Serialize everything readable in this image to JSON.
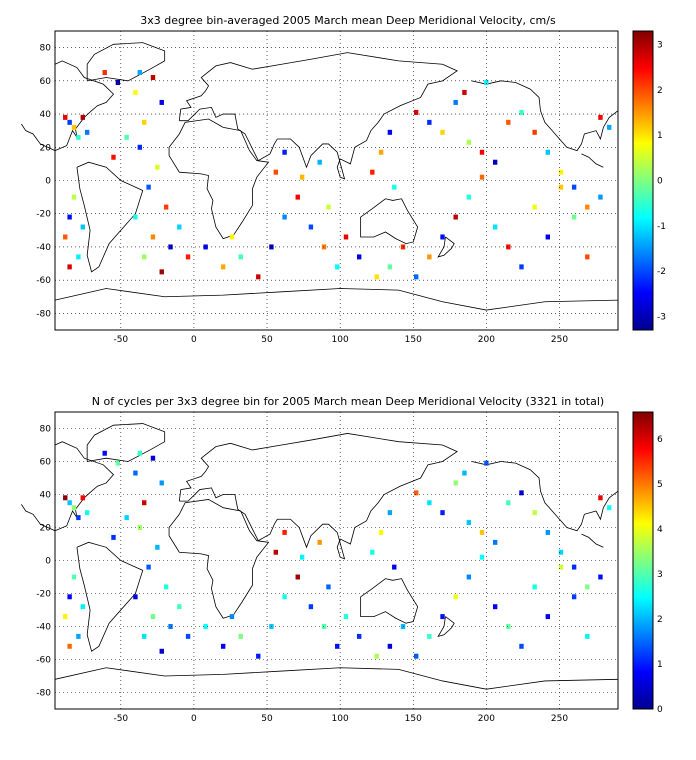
{
  "chart_data": [
    {
      "type": "heatmap",
      "title": "3x3 degree bin-averaged 2005 March mean Deep Meridional Velocity, cm/s",
      "xlim": [
        -95,
        290
      ],
      "ylim": [
        -90,
        90
      ],
      "xticks": [
        -50,
        0,
        50,
        100,
        150,
        200,
        250
      ],
      "xticklabels": [
        "-50",
        "0",
        "50",
        "100",
        "150",
        "200",
        "250"
      ],
      "yticks": [
        80,
        60,
        40,
        20,
        0,
        -20,
        -40,
        -60,
        -80
      ],
      "yticklabels": [
        "80",
        "60",
        "40",
        "20",
        "0",
        "-20",
        "-40",
        "-60",
        "-80"
      ],
      "grid": true,
      "colorbar": {
        "clim": [
          -3.3,
          3.3
        ],
        "ticks": [
          3,
          2,
          1,
          0,
          -1,
          -2,
          -3
        ],
        "ticklabels": [
          "3",
          "2",
          "1",
          "0",
          "-1",
          "-2",
          "-3"
        ]
      },
      "bins": [
        [
          -88,
          38,
          2.6
        ],
        [
          -85,
          35,
          -2.1
        ],
        [
          -82,
          32,
          1.2
        ],
        [
          -79,
          26,
          -0.5
        ],
        [
          -76,
          38,
          3.0
        ],
        [
          -73,
          29,
          -1.7
        ],
        [
          -82,
          -10,
          0.4
        ],
        [
          -85,
          -22,
          -2.4
        ],
        [
          -88,
          -34,
          1.9
        ],
        [
          -79,
          -46,
          -0.9
        ],
        [
          -85,
          -52,
          2.7
        ],
        [
          -76,
          -28,
          -1.2
        ],
        [
          -61,
          65,
          2.2
        ],
        [
          -52,
          59,
          -3.0
        ],
        [
          -40,
          53,
          0.8
        ],
        [
          -37,
          65,
          -1.4
        ],
        [
          -28,
          62,
          2.9
        ],
        [
          -22,
          47,
          -2.6
        ],
        [
          -34,
          35,
          1.1
        ],
        [
          -46,
          26,
          -0.3
        ],
        [
          -55,
          14,
          2.4
        ],
        [
          -37,
          20,
          -2.2
        ],
        [
          -25,
          8,
          0.6
        ],
        [
          -31,
          -4,
          -1.9
        ],
        [
          -19,
          -16,
          2.1
        ],
        [
          -40,
          -22,
          -0.7
        ],
        [
          -28,
          -34,
          1.6
        ],
        [
          -16,
          -40,
          -2.8
        ],
        [
          -34,
          -46,
          0.2
        ],
        [
          -22,
          -55,
          3.1
        ],
        [
          -10,
          -28,
          -1.1
        ],
        [
          -4,
          -46,
          2.3
        ],
        [
          8,
          -40,
          -2.5
        ],
        [
          20,
          -52,
          1.4
        ],
        [
          32,
          -46,
          -0.4
        ],
        [
          44,
          -58,
          2.8
        ],
        [
          53,
          -40,
          -2.9
        ],
        [
          26,
          -34,
          0.9
        ],
        [
          62,
          -22,
          -1.6
        ],
        [
          71,
          -10,
          2.5
        ],
        [
          80,
          -28,
          -2.0
        ],
        [
          89,
          -40,
          1.7
        ],
        [
          98,
          -52,
          -0.8
        ],
        [
          56,
          5,
          2.0
        ],
        [
          62,
          17,
          -2.3
        ],
        [
          74,
          2,
          1.3
        ],
        [
          86,
          11,
          -1.3
        ],
        [
          92,
          -16,
          0.5
        ],
        [
          104,
          -34,
          2.6
        ],
        [
          113,
          -46,
          -2.7
        ],
        [
          125,
          -58,
          1.0
        ],
        [
          134,
          -52,
          -0.2
        ],
        [
          143,
          -40,
          2.2
        ],
        [
          152,
          -58,
          -1.8
        ],
        [
          161,
          -46,
          1.5
        ],
        [
          170,
          -34,
          -2.4
        ],
        [
          179,
          -22,
          2.9
        ],
        [
          188,
          -10,
          -0.6
        ],
        [
          197,
          2,
          1.8
        ],
        [
          206,
          -28,
          -1.0
        ],
        [
          215,
          -40,
          2.4
        ],
        [
          224,
          -52,
          -2.1
        ],
        [
          233,
          -16,
          0.7
        ],
        [
          242,
          -34,
          -2.6
        ],
        [
          251,
          -4,
          1.2
        ],
        [
          260,
          -22,
          -0.1
        ],
        [
          269,
          -46,
          2.0
        ],
        [
          278,
          -10,
          -1.5
        ],
        [
          152,
          41,
          2.7
        ],
        [
          161,
          35,
          -2.2
        ],
        [
          170,
          29,
          1.1
        ],
        [
          179,
          47,
          -1.7
        ],
        [
          188,
          23,
          0.3
        ],
        [
          197,
          17,
          2.6
        ],
        [
          206,
          11,
          -2.9
        ],
        [
          215,
          35,
          1.9
        ],
        [
          224,
          41,
          -0.5
        ],
        [
          233,
          29,
          2.1
        ],
        [
          242,
          17,
          -1.2
        ],
        [
          251,
          5,
          0.9
        ],
        [
          260,
          -4,
          -2.0
        ],
        [
          269,
          -16,
          1.6
        ],
        [
          185,
          53,
          2.8
        ],
        [
          200,
          59,
          -0.9
        ],
        [
          128,
          17,
          1.4
        ],
        [
          134,
          29,
          -2.5
        ],
        [
          122,
          5,
          2.3
        ],
        [
          137,
          -4,
          -0.7
        ],
        [
          278,
          38,
          2.5
        ],
        [
          284,
          32,
          -1.4
        ]
      ]
    },
    {
      "type": "heatmap",
      "title": "N of cycles per 3x3 degree bin for 2005 March mean Deep Meridional Velocity (3321 in total)",
      "xlim": [
        -95,
        290
      ],
      "ylim": [
        -90,
        90
      ],
      "xticks": [
        -50,
        0,
        50,
        100,
        150,
        200,
        250
      ],
      "xticklabels": [
        "-50",
        "0",
        "50",
        "100",
        "150",
        "200",
        "250"
      ],
      "yticks": [
        80,
        60,
        40,
        20,
        0,
        -20,
        -40,
        -60,
        -80
      ],
      "yticklabels": [
        "80",
        "60",
        "40",
        "20",
        "0",
        "-20",
        "-40",
        "-60",
        "-80"
      ],
      "grid": true,
      "colorbar": {
        "clim": [
          0,
          6.6
        ],
        "ticks": [
          6,
          5,
          4,
          3,
          2,
          1,
          0
        ],
        "ticklabels": [
          "6",
          "5",
          "4",
          "3",
          "2",
          "1",
          "0"
        ]
      },
      "bins": [
        [
          -88,
          38,
          6.5
        ],
        [
          -85,
          35,
          2.1
        ],
        [
          -82,
          32,
          3.4
        ],
        [
          -79,
          26,
          1.2
        ],
        [
          -76,
          38,
          5.8
        ],
        [
          -73,
          29,
          2.6
        ],
        [
          -82,
          -10,
          3.0
        ],
        [
          -85,
          -22,
          0.8
        ],
        [
          -88,
          -34,
          4.2
        ],
        [
          -79,
          -46,
          1.9
        ],
        [
          -85,
          -52,
          5.1
        ],
        [
          -76,
          -28,
          2.4
        ],
        [
          -61,
          65,
          0.9
        ],
        [
          -52,
          59,
          3.1
        ],
        [
          -40,
          53,
          1.5
        ],
        [
          -37,
          65,
          2.8
        ],
        [
          -28,
          62,
          0.6
        ],
        [
          -22,
          47,
          1.8
        ],
        [
          -34,
          35,
          6.1
        ],
        [
          -46,
          26,
          2.2
        ],
        [
          -55,
          14,
          1.1
        ],
        [
          -37,
          20,
          3.5
        ],
        [
          -25,
          8,
          2.0
        ],
        [
          -31,
          -4,
          1.4
        ],
        [
          -19,
          -16,
          2.7
        ],
        [
          -40,
          -22,
          0.7
        ],
        [
          -28,
          -34,
          3.2
        ],
        [
          -16,
          -40,
          1.6
        ],
        [
          -34,
          -46,
          2.3
        ],
        [
          -22,
          -55,
          0.5
        ],
        [
          -10,
          -28,
          2.9
        ],
        [
          -4,
          -46,
          1.3
        ],
        [
          8,
          -40,
          2.5
        ],
        [
          20,
          -52,
          0.8
        ],
        [
          32,
          -46,
          3.3
        ],
        [
          44,
          -58,
          1.0
        ],
        [
          53,
          -40,
          2.1
        ],
        [
          26,
          -34,
          1.7
        ],
        [
          62,
          -22,
          2.6
        ],
        [
          71,
          -10,
          6.4
        ],
        [
          80,
          -28,
          1.2
        ],
        [
          89,
          -40,
          3.0
        ],
        [
          98,
          -52,
          0.9
        ],
        [
          56,
          5,
          6.2
        ],
        [
          62,
          17,
          5.6
        ],
        [
          74,
          2,
          2.4
        ],
        [
          86,
          11,
          4.8
        ],
        [
          92,
          -16,
          1.5
        ],
        [
          104,
          -34,
          2.7
        ],
        [
          113,
          -46,
          1.1
        ],
        [
          125,
          -58,
          3.6
        ],
        [
          134,
          -52,
          0.6
        ],
        [
          143,
          -40,
          2.0
        ],
        [
          152,
          -58,
          1.4
        ],
        [
          161,
          -46,
          2.8
        ],
        [
          170,
          -34,
          0.9
        ],
        [
          179,
          -22,
          4.0
        ],
        [
          188,
          -10,
          1.7
        ],
        [
          197,
          2,
          2.5
        ],
        [
          206,
          -28,
          0.8
        ],
        [
          215,
          -40,
          3.1
        ],
        [
          224,
          -52,
          1.3
        ],
        [
          233,
          -16,
          2.6
        ],
        [
          242,
          -34,
          0.7
        ],
        [
          251,
          -4,
          3.8
        ],
        [
          260,
          -22,
          1.2
        ],
        [
          269,
          -46,
          2.4
        ],
        [
          278,
          -10,
          0.9
        ],
        [
          152,
          41,
          5.2
        ],
        [
          161,
          35,
          2.3
        ],
        [
          170,
          29,
          1.0
        ],
        [
          179,
          47,
          3.4
        ],
        [
          188,
          23,
          2.1
        ],
        [
          197,
          17,
          4.5
        ],
        [
          206,
          11,
          1.6
        ],
        [
          215,
          35,
          2.9
        ],
        [
          224,
          41,
          0.5
        ],
        [
          233,
          29,
          3.7
        ],
        [
          242,
          17,
          1.8
        ],
        [
          251,
          5,
          2.2
        ],
        [
          260,
          -4,
          1.1
        ],
        [
          269,
          -16,
          3.3
        ],
        [
          185,
          53,
          2.0
        ],
        [
          200,
          59,
          1.4
        ],
        [
          128,
          17,
          4.1
        ],
        [
          134,
          29,
          1.9
        ],
        [
          122,
          5,
          2.6
        ],
        [
          137,
          -4,
          0.8
        ],
        [
          278,
          38,
          5.9
        ],
        [
          284,
          32,
          2.5
        ]
      ]
    }
  ]
}
